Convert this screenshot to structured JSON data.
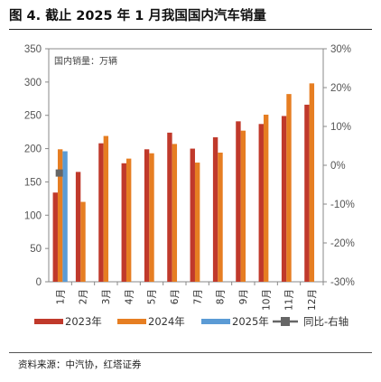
{
  "figure": {
    "title": "图 4. 截止 2025 年 1 月我国国内汽车销量",
    "source": "资料来源：中汽协，红塔证券"
  },
  "chart_data": {
    "type": "bar",
    "unit_label": "国内销量：万辆",
    "categories": [
      "1月",
      "2月",
      "3月",
      "4月",
      "5月",
      "6月",
      "7月",
      "8月",
      "9月",
      "10月",
      "11月",
      "12月"
    ],
    "series": [
      {
        "name": "2023年",
        "type": "bar",
        "axis": "left",
        "color": "#c0392b",
        "values": [
          134,
          165,
          208,
          178,
          199,
          224,
          200,
          217,
          241,
          237,
          249,
          266
        ]
      },
      {
        "name": "2024年",
        "type": "bar",
        "axis": "left",
        "color": "#e67e22",
        "values": [
          199,
          120,
          219,
          185,
          193,
          207,
          179,
          194,
          227,
          251,
          282,
          298
        ]
      },
      {
        "name": "2025年",
        "type": "bar",
        "axis": "left",
        "color": "#5b9bd5",
        "values": [
          196,
          null,
          null,
          null,
          null,
          null,
          null,
          null,
          null,
          null,
          null,
          null
        ]
      },
      {
        "name": "同比-右轴",
        "type": "marker",
        "axis": "right",
        "color": "#666666",
        "values": [
          -2,
          null,
          null,
          null,
          null,
          null,
          null,
          null,
          null,
          null,
          null,
          null
        ]
      }
    ],
    "y_left": {
      "min": 0,
      "max": 350,
      "ticks": [
        0,
        50,
        100,
        150,
        200,
        250,
        300,
        350
      ]
    },
    "y_right": {
      "min": -30,
      "max": 30,
      "ticks": [
        -30,
        -20,
        -10,
        0,
        10,
        20,
        30
      ],
      "format": "percent"
    },
    "grid": false,
    "legend_position": "bottom"
  }
}
